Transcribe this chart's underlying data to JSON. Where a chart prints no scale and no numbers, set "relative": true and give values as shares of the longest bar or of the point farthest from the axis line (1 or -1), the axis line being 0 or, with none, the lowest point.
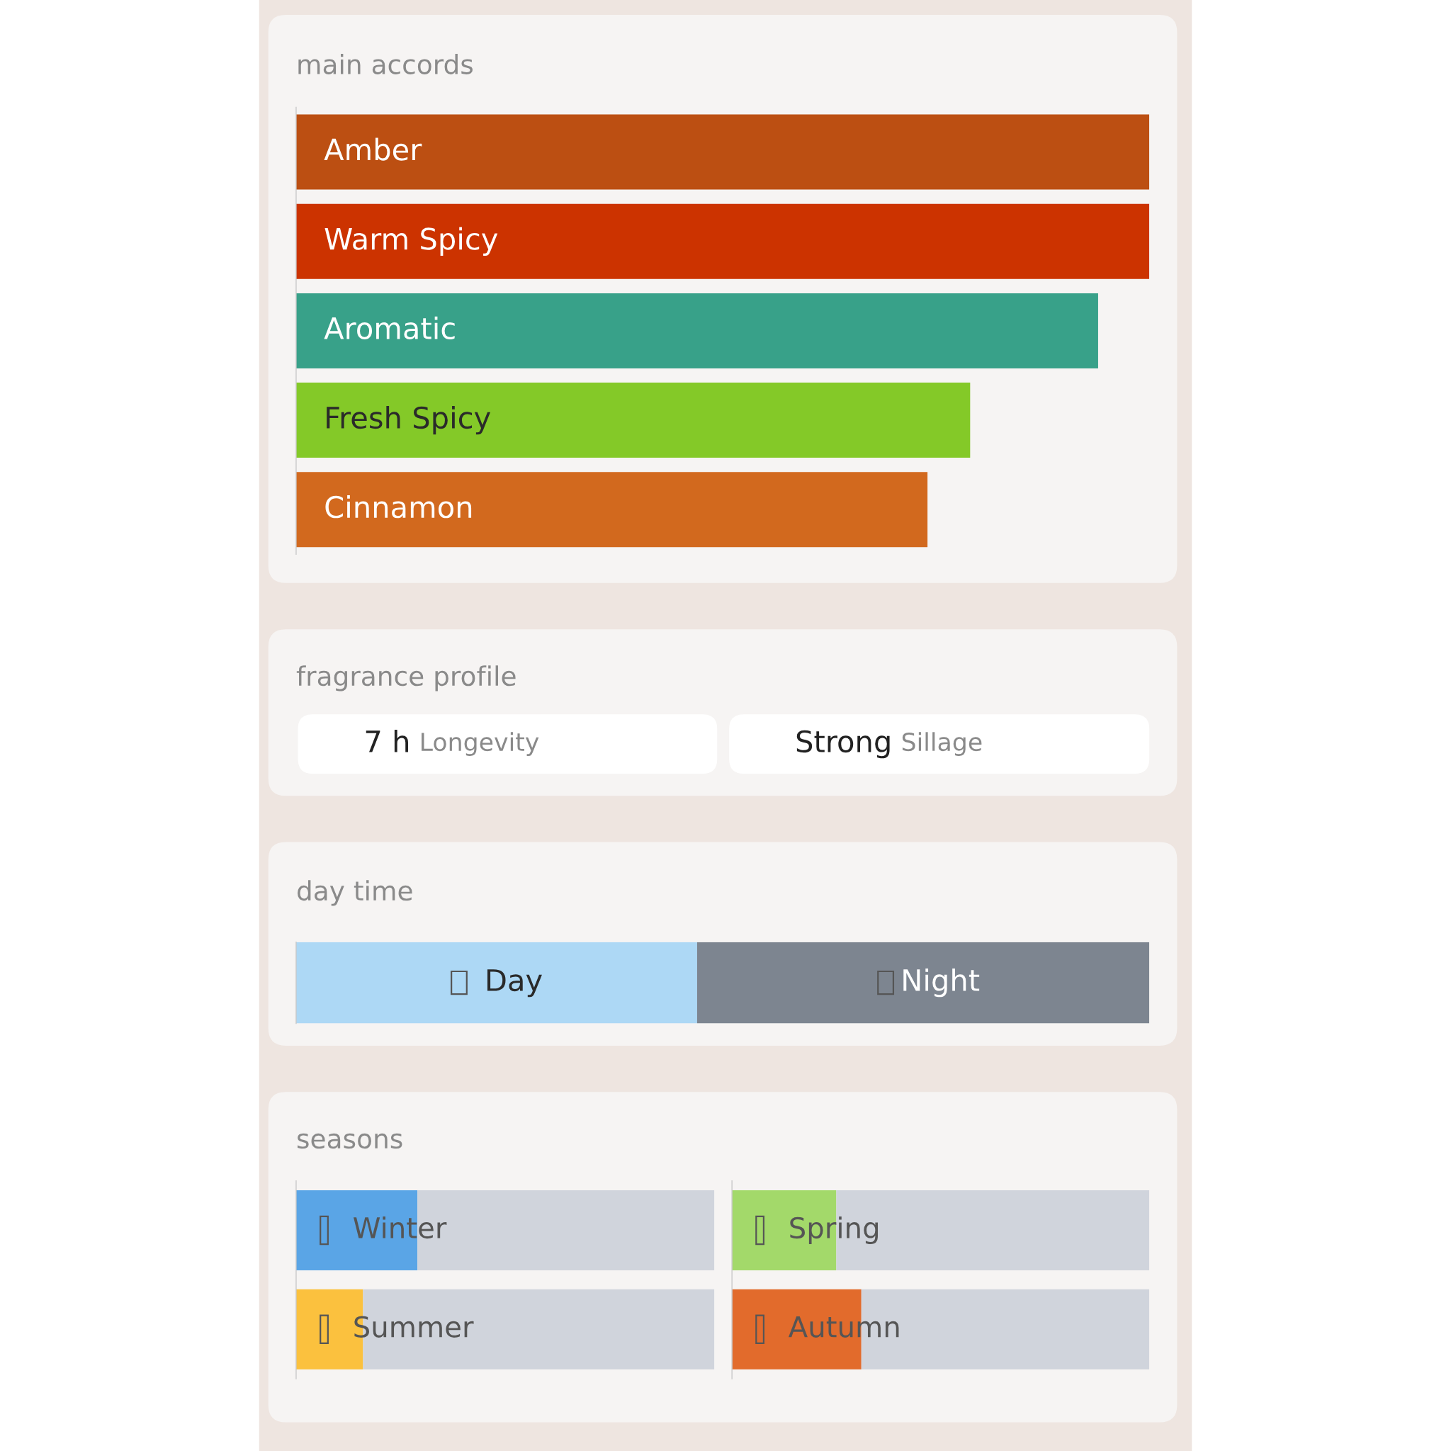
{
  "chart_data": [
    {
      "type": "bar",
      "title": "main accords",
      "orientation": "horizontal",
      "relative": true,
      "categories": [
        "Amber",
        "Warm Spicy",
        "Aromatic",
        "Fresh Spicy",
        "Cinnamon"
      ],
      "values": [
        1.0,
        1.0,
        0.94,
        0.79,
        0.74
      ],
      "colors": [
        "#bc4f12",
        "#cc3300",
        "#38a189",
        "#84c928",
        "#d2691e"
      ]
    },
    {
      "type": "other",
      "title": "fragrance profile",
      "annotations": [
        "7 h",
        "Longevity",
        "Strong",
        "Sillage"
      ]
    },
    {
      "type": "bar",
      "title": "day time",
      "orientation": "horizontal",
      "stacked": true,
      "relative": true,
      "categories": [
        null
      ],
      "series": [
        {
          "name": "Day",
          "color": "#add8f5",
          "values": [
            0.47
          ]
        },
        {
          "name": "Night",
          "color": "#7d8590",
          "values": [
            0.53
          ]
        }
      ]
    },
    {
      "type": "bar",
      "title": "seasons",
      "orientation": "horizontal",
      "stacked": true,
      "relative": true,
      "categories": [
        "Winter",
        "Summer"
      ],
      "series": [
        {
          "colors": [
            "#5aa5e6",
            "#fbc13e"
          ],
          "values": [
            0.29,
            0.16
          ]
        },
        {
          "color": "#d0d4dc",
          "values": [
            0.71,
            0.84
          ]
        }
      ]
    },
    {
      "type": "bar",
      "orientation": "horizontal",
      "stacked": true,
      "relative": true,
      "categories": [
        "Spring",
        "Autumn"
      ],
      "series": [
        {
          "colors": [
            "#a3d96a",
            "#e26b2c"
          ],
          "values": [
            0.25,
            0.31
          ]
        },
        {
          "color": "#d0d4dc",
          "values": [
            0.75,
            0.69
          ]
        }
      ]
    }
  ]
}
